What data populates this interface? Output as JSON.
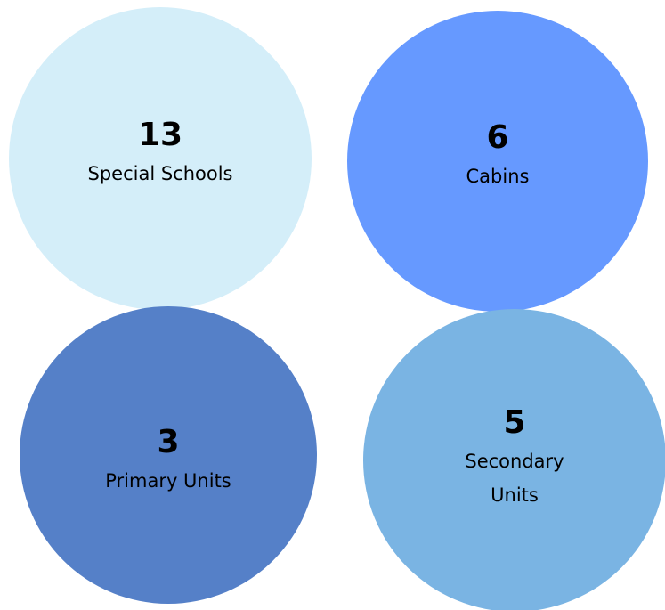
{
  "items": [
    {
      "number": 13,
      "label": "Special Schools"
    },
    {
      "number": 6,
      "label": "Cabins"
    },
    {
      "number": 3,
      "label": "Primary Units"
    },
    {
      "number": 5,
      "label": "Secondary Units"
    }
  ]
}
